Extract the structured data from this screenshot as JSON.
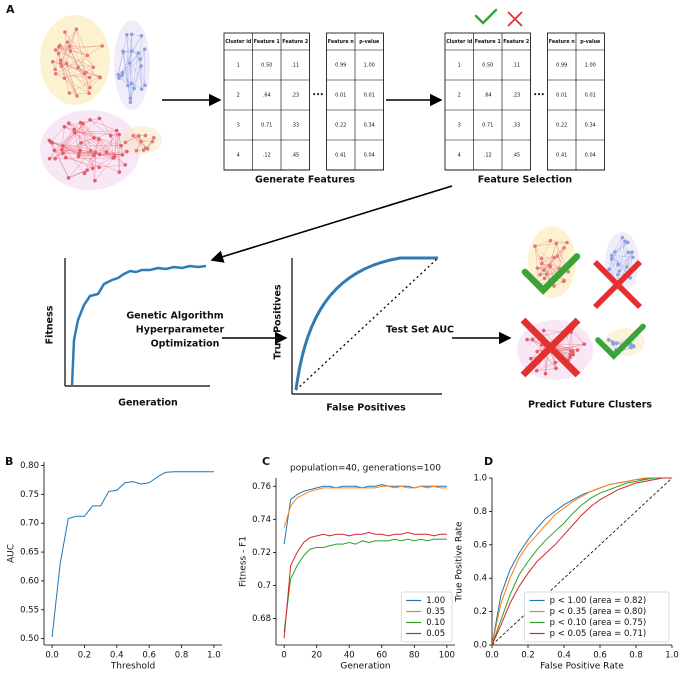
{
  "diagram": {
    "panel": "A",
    "table": {
      "header": [
        "Cluster id",
        "Feature 1",
        "Feature 2",
        "Feature n",
        "p-value"
      ],
      "rows": [
        [
          "1",
          "0.50",
          ".11",
          "0.99",
          "1.00"
        ],
        [
          "2",
          ".64",
          ".23",
          "0.01",
          "0.01"
        ],
        [
          "3",
          "0.71",
          ".33",
          "0.22",
          "0.34"
        ],
        [
          "4",
          ".12",
          ".45",
          "0.41",
          "0.04"
        ]
      ],
      "ellipsis": "•••"
    },
    "captions": {
      "generate": "Generate Features",
      "selection": "Feature Selection",
      "test_auc": "Test Set AUC",
      "predict": "Predict Future Clusters"
    },
    "optimization_lines": [
      "Genetic Algorithm",
      "Hyperparameter",
      "Optimization"
    ],
    "fitness_sketch": {
      "ylabel": "Fitness",
      "xlabel": "Generation"
    },
    "roc_sketch": {
      "ylabel": "True Positives",
      "xlabel": "False Positives"
    }
  },
  "chart_data": [
    {
      "type": "line",
      "panel": "B",
      "xlabel": "Threshold",
      "ylabel": "AUC",
      "color": "#1f77b4",
      "x": [
        0.0,
        0.05,
        0.1,
        0.15,
        0.2,
        0.25,
        0.3,
        0.35,
        0.4,
        0.45,
        0.5,
        0.55,
        0.6,
        0.65,
        0.7,
        0.75,
        0.8,
        0.85,
        0.9,
        0.95,
        1.0
      ],
      "values": [
        0.503,
        0.63,
        0.708,
        0.712,
        0.712,
        0.73,
        0.73,
        0.755,
        0.757,
        0.77,
        0.772,
        0.768,
        0.77,
        0.78,
        0.788,
        0.789,
        0.789,
        0.789,
        0.789,
        0.789,
        0.789
      ],
      "xlim": [
        -0.05,
        1.05
      ],
      "xticks": [
        {
          "value": 0,
          "label": "0.0"
        },
        {
          "value": 0.2,
          "label": "0.2"
        },
        {
          "value": 0.4,
          "label": "0.4"
        },
        {
          "value": 0.6,
          "label": "0.6"
        },
        {
          "value": 0.8,
          "label": "0.8"
        },
        {
          "value": 1,
          "label": "1.0"
        }
      ],
      "ylim": [
        0.489,
        0.806
      ],
      "yticks": [
        {
          "value": 0.5,
          "label": "0.50"
        },
        0.55,
        {
          "value": 0.6,
          "label": "0.60"
        },
        0.65,
        {
          "value": 0.7,
          "label": "0.70"
        },
        0.75,
        {
          "value": 0.8,
          "label": "0.80"
        }
      ]
    },
    {
      "type": "line",
      "panel": "C",
      "title": "population=40, generations=100",
      "xlabel": "Generation",
      "ylabel": "Fitness - F1",
      "legend": "lower right",
      "x": [
        0,
        4,
        8,
        12,
        16,
        20,
        24,
        28,
        32,
        36,
        40,
        44,
        48,
        52,
        56,
        60,
        64,
        68,
        72,
        76,
        80,
        84,
        88,
        92,
        96,
        100
      ],
      "series": [
        {
          "name": "1.00",
          "color": "#1f77b4",
          "values": [
            0.725,
            0.752,
            0.755,
            0.757,
            0.758,
            0.759,
            0.76,
            0.76,
            0.759,
            0.76,
            0.76,
            0.76,
            0.759,
            0.76,
            0.76,
            0.761,
            0.76,
            0.76,
            0.76,
            0.76,
            0.759,
            0.76,
            0.76,
            0.76,
            0.76,
            0.76
          ]
        },
        {
          "name": "0.35",
          "color": "#ff7f0e",
          "values": [
            0.735,
            0.748,
            0.753,
            0.755,
            0.757,
            0.758,
            0.759,
            0.759,
            0.759,
            0.759,
            0.759,
            0.759,
            0.759,
            0.759,
            0.759,
            0.76,
            0.76,
            0.759,
            0.76,
            0.759,
            0.759,
            0.76,
            0.759,
            0.76,
            0.759,
            0.759
          ]
        },
        {
          "name": "0.10",
          "color": "#2ca02c",
          "values": [
            0.672,
            0.704,
            0.712,
            0.718,
            0.722,
            0.723,
            0.723,
            0.724,
            0.725,
            0.725,
            0.726,
            0.725,
            0.727,
            0.726,
            0.727,
            0.727,
            0.727,
            0.728,
            0.727,
            0.728,
            0.727,
            0.728,
            0.727,
            0.728,
            0.728,
            0.728
          ]
        },
        {
          "name": "0.05",
          "color": "#d62728",
          "values": [
            0.668,
            0.712,
            0.72,
            0.726,
            0.729,
            0.73,
            0.731,
            0.73,
            0.731,
            0.731,
            0.73,
            0.731,
            0.731,
            0.732,
            0.731,
            0.731,
            0.73,
            0.731,
            0.731,
            0.732,
            0.731,
            0.731,
            0.731,
            0.73,
            0.731,
            0.731
          ]
        }
      ],
      "xlim": [
        -5,
        105
      ],
      "xticks": [
        0,
        20,
        40,
        60,
        80,
        100
      ],
      "ylim": [
        0.664,
        0.765
      ],
      "yticks": [
        0.68,
        0.7,
        0.72,
        0.74,
        0.76
      ]
    },
    {
      "type": "line",
      "panel": "D",
      "xlabel": "False Positive Rate",
      "ylabel": "True Positive Rate",
      "legend": "lower right",
      "diagonal": true,
      "x": [
        0,
        0.05,
        0.1,
        0.15,
        0.2,
        0.25,
        0.3,
        0.35,
        0.4,
        0.45,
        0.5,
        0.55,
        0.6,
        0.65,
        0.7,
        0.75,
        0.8,
        0.85,
        0.9,
        0.95,
        1
      ],
      "series": [
        {
          "name": "p < 1.00 (area = 0.82)",
          "color": "#1f77b4",
          "values": [
            0,
            0.3,
            0.45,
            0.55,
            0.63,
            0.7,
            0.76,
            0.8,
            0.84,
            0.87,
            0.9,
            0.92,
            0.94,
            0.96,
            0.97,
            0.98,
            0.99,
            0.995,
            1,
            1,
            1
          ]
        },
        {
          "name": "p < 0.35 (area = 0.80)",
          "color": "#ff7f0e",
          "values": [
            0,
            0.25,
            0.4,
            0.52,
            0.6,
            0.66,
            0.72,
            0.78,
            0.82,
            0.86,
            0.89,
            0.92,
            0.94,
            0.96,
            0.97,
            0.98,
            0.99,
            1,
            1,
            1,
            1
          ]
        },
        {
          "name": "p < 0.10 (area = 0.75)",
          "color": "#2ca02c",
          "values": [
            0,
            0.15,
            0.3,
            0.42,
            0.5,
            0.57,
            0.63,
            0.68,
            0.73,
            0.79,
            0.84,
            0.88,
            0.91,
            0.93,
            0.95,
            0.97,
            0.98,
            0.99,
            1,
            1,
            1
          ]
        },
        {
          "name": "p < 0.05 (area = 0.71)",
          "color": "#d62728",
          "values": [
            0,
            0.12,
            0.25,
            0.35,
            0.43,
            0.5,
            0.55,
            0.6,
            0.66,
            0.72,
            0.78,
            0.83,
            0.87,
            0.9,
            0.93,
            0.95,
            0.97,
            0.98,
            0.99,
            1,
            1
          ]
        }
      ],
      "xlim": [
        0,
        1
      ],
      "xticks": [
        {
          "value": 0,
          "label": "0.0"
        },
        {
          "value": 0.2,
          "label": "0.2"
        },
        {
          "value": 0.4,
          "label": "0.4"
        },
        {
          "value": 0.6,
          "label": "0.6"
        },
        {
          "value": 0.8,
          "label": "0.8"
        },
        {
          "value": 1,
          "label": "1.0"
        }
      ],
      "ylim": [
        0,
        1
      ],
      "yticks": [
        {
          "value": 0,
          "label": "0.0"
        },
        {
          "value": 0.2,
          "label": "0.2"
        },
        {
          "value": 0.4,
          "label": "0.4"
        },
        {
          "value": 0.6,
          "label": "0.6"
        },
        {
          "value": 0.8,
          "label": "0.8"
        },
        {
          "value": 1,
          "label": "1.0"
        }
      ]
    }
  ]
}
